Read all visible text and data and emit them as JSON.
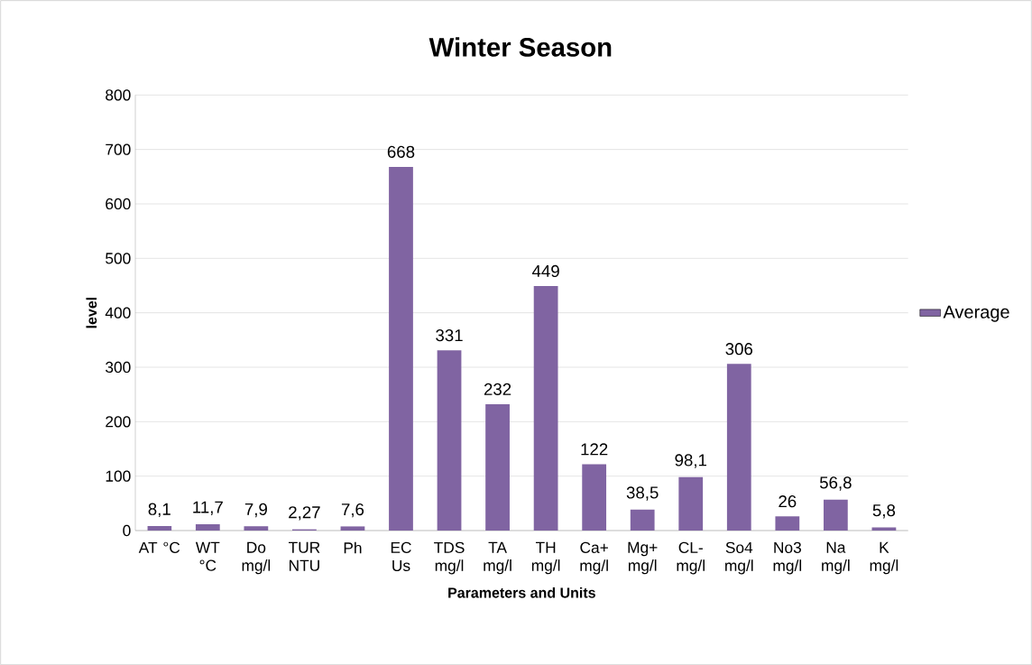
{
  "chart_data": {
    "type": "bar",
    "title": "Winter Season",
    "xlabel": "Parameters and Units",
    "ylabel": "level",
    "categories": [
      "AT °C",
      "WT °C",
      "Do mg/l",
      "TUR NTU",
      "Ph",
      "EC Us",
      "TDS mg/l",
      "TA mg/l",
      "TH mg/l",
      "Ca+ mg/l",
      "Mg+ mg/l",
      "CL- mg/l",
      "So4 mg/l",
      "No3 mg/l",
      "Na mg/l",
      "K mg/l"
    ],
    "series": [
      {
        "name": "Average",
        "color": "#8064a2",
        "values": [
          8.1,
          11.7,
          7.9,
          2.27,
          7.6,
          668,
          331,
          232,
          449,
          122,
          38.5,
          98.1,
          306,
          26,
          56.8,
          5.8
        ],
        "value_labels": [
          "8,1",
          "11,7",
          "7,9",
          "2,27",
          "7,6",
          "668",
          "331",
          "232",
          "449",
          "122",
          "38,5",
          "98,1",
          "306",
          "26",
          "56,8",
          "5,8"
        ]
      }
    ],
    "ylim": [
      0,
      800
    ],
    "yticks": [
      0,
      100,
      200,
      300,
      400,
      500,
      600,
      700,
      800
    ],
    "grid": "y",
    "legend": "right"
  }
}
